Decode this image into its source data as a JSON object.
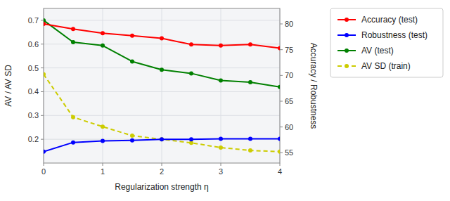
{
  "chart_data": {
    "type": "line",
    "xlabel": "Regularization strength η",
    "ylabel": "AV / AV SD",
    "y2label": "Accuracy / Robustness",
    "x": [
      0,
      0.5,
      1.0,
      1.5,
      2.0,
      2.5,
      3.0,
      3.5,
      4.0
    ],
    "xlim": [
      0,
      4
    ],
    "xticks": [
      0,
      1,
      2,
      3,
      4
    ],
    "ylim": [
      0.1,
      0.75
    ],
    "yticks": [
      0.2,
      0.3,
      0.4,
      0.5,
      0.6,
      0.7
    ],
    "y2lim": [
      53,
      83
    ],
    "y2ticks": [
      55,
      60,
      65,
      70,
      75,
      80
    ],
    "grid": true,
    "legend": "right",
    "series": [
      {
        "name": "Accuracy (test)",
        "color": "#ff0000",
        "axis": "y2",
        "marker": "circle",
        "line_style": "solid",
        "values": [
          80.0,
          79.0,
          78.2,
          77.7,
          77.2,
          76.0,
          75.8,
          76.0,
          75.3
        ]
      },
      {
        "name": "Robustness (test)",
        "color": "#0000ff",
        "axis": "y2",
        "marker": "circle",
        "line_style": "solid",
        "values": [
          55.2,
          57.0,
          57.3,
          57.4,
          57.6,
          57.6,
          57.7,
          57.7,
          57.7
        ]
      },
      {
        "name": "AV (test)",
        "color": "#008000",
        "axis": "y",
        "marker": "circle",
        "line_style": "solid",
        "values": [
          0.7,
          0.608,
          0.594,
          0.527,
          0.492,
          0.477,
          0.447,
          0.44,
          0.42
        ]
      },
      {
        "name": "AV SD (train)",
        "color": "#cccc00",
        "axis": "y",
        "marker": "circle",
        "line_style": "dashed",
        "values": [
          0.473,
          0.293,
          0.253,
          0.215,
          0.2,
          0.185,
          0.165,
          0.153,
          0.148
        ]
      }
    ]
  }
}
